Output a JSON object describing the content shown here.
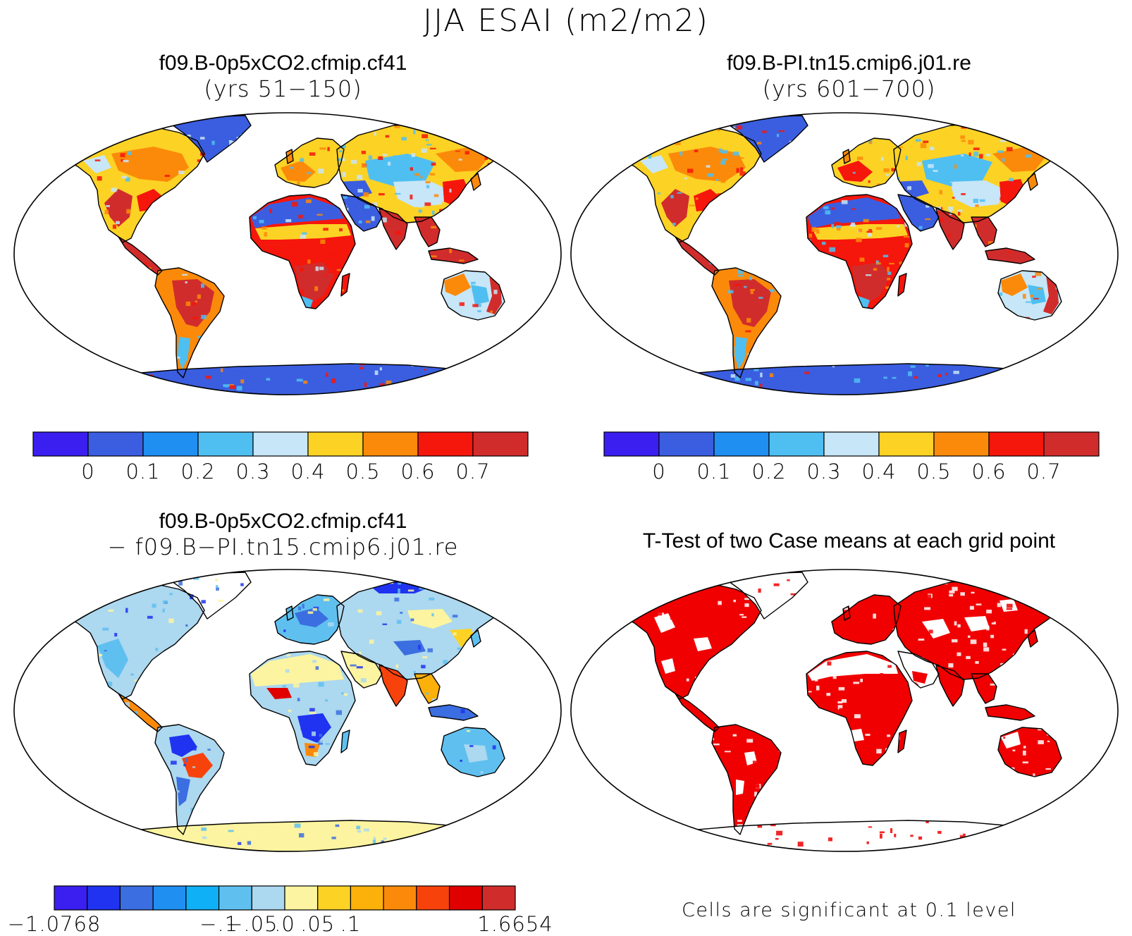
{
  "figure": {
    "title": "JJA ESAI (m2/m2)"
  },
  "panels": [
    {
      "id": "p1",
      "title": "f09.B-0p5xCO2.cfmip.cf41",
      "subtitle": "(yrs 51−150)"
    },
    {
      "id": "p2",
      "title": "f09.B-PI.tn15.cmip6.j01.re",
      "subtitle": "(yrs 601−700)"
    },
    {
      "id": "p3",
      "title": "f09.B-0p5xCO2.cfmip.cf41",
      "subtitle": "− f09.B−PI.tn15.cmip6.j01.re"
    },
    {
      "id": "p4",
      "title": "T-Test of two Case means at each grid point",
      "subtitle": ""
    }
  ],
  "colorbars": {
    "absolute": {
      "colors": [
        "#3b1ff0",
        "#3b5ee0",
        "#1f8ff2",
        "#4fbff2",
        "#c7e6f7",
        "#fcd225",
        "#fc8a0a",
        "#f5160c",
        "#d12c2c"
      ],
      "labels": [
        "0",
        "0.1",
        "0.2",
        "0.3",
        "0.4",
        "0.5",
        "0.6",
        "0.7"
      ]
    },
    "difference": {
      "colors": [
        "#3b1ff0",
        "#1f33f0",
        "#3b6ee0",
        "#1f8ff2",
        "#0fb0f5",
        "#5fc0f0",
        "#acd8f0",
        "#fcf4a0",
        "#fcd225",
        "#fcb00a",
        "#fc8a0a",
        "#f8420c",
        "#e00000",
        "#d12c2c"
      ],
      "labels": [
        "−1.0768",
        "−.1",
        "−.05",
        ".0",
        ".05",
        ".1",
        "1.6654"
      ]
    }
  },
  "significance_note": "Cells are significant at 0.1 level",
  "colors": {
    "ocean": "#ffffff",
    "coast": "#000000",
    "significant": "#f00000"
  }
}
